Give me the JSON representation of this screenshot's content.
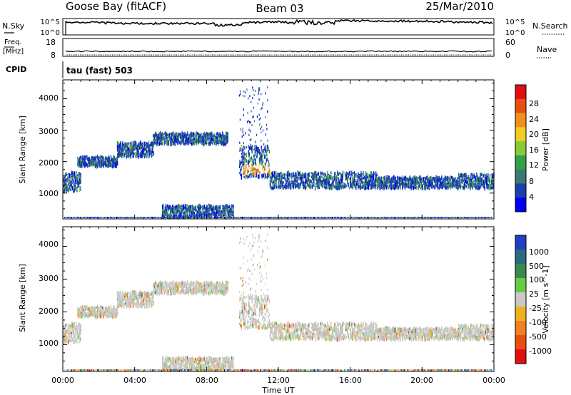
{
  "header": {
    "station": "Goose Bay (fitACF)",
    "beam": "Beam 03",
    "date": "25/Mar/2010"
  },
  "top_panels": {
    "nsky_label": "N.Sky",
    "nsky_ticks": [
      "10^5",
      "10^0"
    ],
    "nsearch_label": "N.Search",
    "nsearch_ticks": [
      "10^5",
      "10^0"
    ],
    "freq_label_1": "Freq.",
    "freq_label_2": "[MHz]",
    "freq_ticks": [
      "18",
      "8"
    ],
    "nave_label": "Nave",
    "nave_ticks": [
      "60",
      "0"
    ],
    "cpid_label": "CPID",
    "cpid_value": "tau (fast) 503"
  },
  "chart_data": [
    {
      "type": "heatmap",
      "name": "power",
      "ylabel": "Slant Range [km]",
      "xlabel": "Time UT",
      "xlim_hours": [
        0,
        24
      ],
      "ylim_km": [
        180,
        4600
      ],
      "y_ticks": [
        "1000",
        "2000",
        "3000",
        "4000"
      ],
      "x_ticks": [
        "00:00",
        "04:00",
        "08:00",
        "12:00",
        "16:00",
        "20:00",
        "00:00"
      ],
      "colorbar_label": "Power [dB]",
      "colorbar_ticks": [
        "4",
        "8",
        "12",
        "16",
        "20",
        "24",
        "28"
      ],
      "colorbar_colors": [
        "#0000ee",
        "#1a3fb0",
        "#3a7a72",
        "#33a04a",
        "#8cc83c",
        "#f2cc1e",
        "#f0901a",
        "#e85010",
        "#e01010"
      ],
      "scatter_regions": [
        {
          "t0": 0.0,
          "t1": 1.0,
          "r0": 1050,
          "r1": 1650
        },
        {
          "t0": 0.8,
          "t1": 3.0,
          "r0": 1850,
          "r1": 2150
        },
        {
          "t0": 3.0,
          "t1": 5.0,
          "r0": 2150,
          "r1": 2600
        },
        {
          "t0": 5.0,
          "t1": 9.2,
          "r0": 2550,
          "r1": 2900
        },
        {
          "t0": 9.8,
          "t1": 11.5,
          "r0": 1500,
          "r1": 2500
        },
        {
          "t0": 11.5,
          "t1": 17.5,
          "r0": 1150,
          "r1": 1650
        },
        {
          "t0": 17.5,
          "t1": 22.0,
          "r0": 1150,
          "r1": 1500
        },
        {
          "t0": 22.0,
          "t1": 24.0,
          "r0": 1150,
          "r1": 1600
        },
        {
          "t0": 5.5,
          "t1": 9.5,
          "r0": 230,
          "r1": 600
        }
      ]
    },
    {
      "type": "heatmap",
      "name": "velocity",
      "ylabel": "Slant Range [km]",
      "xlabel": "Time UT",
      "xlim_hours": [
        0,
        24
      ],
      "ylim_km": [
        180,
        4600
      ],
      "y_ticks": [
        "1000",
        "2000",
        "3000",
        "4000"
      ],
      "x_ticks": [
        "00:00",
        "04:00",
        "08:00",
        "12:00",
        "16:00",
        "20:00",
        "00:00"
      ],
      "colorbar_label": "Velocity [m s^-1]",
      "colorbar_ticks": [
        "1000",
        "500",
        "100",
        "25",
        "-25",
        "-100",
        "-500",
        "-1000"
      ],
      "colorbar_colors": [
        "#2040c0",
        "#2a6a80",
        "#3a8a50",
        "#66cc44",
        "#c8c8c8",
        "#f0b020",
        "#f08020",
        "#e85010",
        "#e01010"
      ]
    }
  ],
  "x_axis_title": "Time UT"
}
